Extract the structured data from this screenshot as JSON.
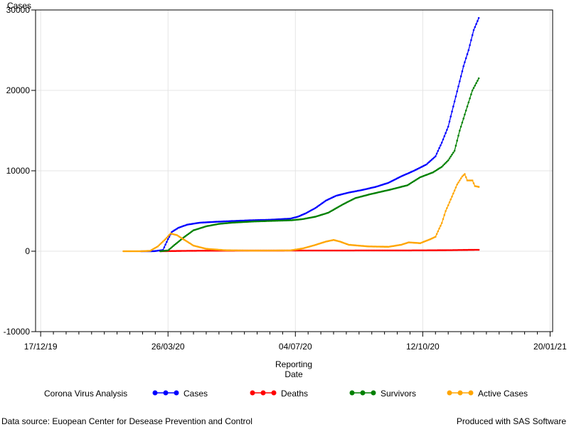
{
  "chart_data": {
    "type": "line",
    "ylabel": "Cases",
    "xlabel_lines": [
      "Reporting",
      "Date"
    ],
    "ylim": [
      -10000,
      30000
    ],
    "y_ticks": [
      -10000,
      0,
      10000,
      20000,
      30000
    ],
    "x_ticks": [
      "17/12/19",
      "26/03/20",
      "04/07/20",
      "12/10/20",
      "20/01/21"
    ],
    "x_tick_dates": [
      "2019-12-17",
      "2020-03-26",
      "2020-07-04",
      "2020-10-12",
      "2021-01-20"
    ],
    "xlim": [
      "2019-12-13",
      "2021-01-22"
    ],
    "grid": true,
    "legend_title": "Corona Virus Analysis",
    "legend_placement": "bottom",
    "series": [
      {
        "name": "Cases",
        "color": "#0000ff",
        "points": [
          [
            "2020-03-05",
            0
          ],
          [
            "2020-03-15",
            5
          ],
          [
            "2020-03-22",
            150
          ],
          [
            "2020-03-26",
            1500
          ],
          [
            "2020-03-29",
            2400
          ],
          [
            "2020-04-03",
            2900
          ],
          [
            "2020-04-10",
            3300
          ],
          [
            "2020-04-20",
            3550
          ],
          [
            "2020-05-01",
            3650
          ],
          [
            "2020-05-15",
            3750
          ],
          [
            "2020-05-31",
            3850
          ],
          [
            "2020-06-15",
            3920
          ],
          [
            "2020-06-30",
            4050
          ],
          [
            "2020-07-06",
            4300
          ],
          [
            "2020-07-12",
            4700
          ],
          [
            "2020-07-20",
            5400
          ],
          [
            "2020-07-28",
            6300
          ],
          [
            "2020-08-05",
            6900
          ],
          [
            "2020-08-15",
            7300
          ],
          [
            "2020-08-25",
            7600
          ],
          [
            "2020-09-05",
            8000
          ],
          [
            "2020-09-15",
            8500
          ],
          [
            "2020-09-25",
            9300
          ],
          [
            "2020-10-05",
            10000
          ],
          [
            "2020-10-15",
            10800
          ],
          [
            "2020-10-22",
            11800
          ],
          [
            "2020-10-27",
            13500
          ],
          [
            "2020-11-01",
            15500
          ],
          [
            "2020-11-05",
            18000
          ],
          [
            "2020-11-09",
            20500
          ],
          [
            "2020-11-13",
            23000
          ],
          [
            "2020-11-17",
            25000
          ],
          [
            "2020-11-21",
            27500
          ],
          [
            "2020-11-25",
            29000
          ]
        ]
      },
      {
        "name": "Deaths",
        "color": "#ff0000",
        "points": [
          [
            "2020-03-20",
            0
          ],
          [
            "2020-03-28",
            20
          ],
          [
            "2020-04-10",
            50
          ],
          [
            "2020-05-01",
            70
          ],
          [
            "2020-06-01",
            80
          ],
          [
            "2020-07-01",
            85
          ],
          [
            "2020-08-01",
            90
          ],
          [
            "2020-09-01",
            95
          ],
          [
            "2020-10-01",
            100
          ],
          [
            "2020-10-15",
            110
          ],
          [
            "2020-11-01",
            130
          ],
          [
            "2020-11-10",
            150
          ],
          [
            "2020-11-25",
            180
          ]
        ]
      },
      {
        "name": "Survivors",
        "color": "#008000",
        "points": [
          [
            "2020-03-20",
            0
          ],
          [
            "2020-03-26",
            100
          ],
          [
            "2020-04-01",
            900
          ],
          [
            "2020-04-08",
            1800
          ],
          [
            "2020-04-15",
            2600
          ],
          [
            "2020-04-25",
            3100
          ],
          [
            "2020-05-05",
            3400
          ],
          [
            "2020-05-15",
            3550
          ],
          [
            "2020-06-01",
            3700
          ],
          [
            "2020-06-20",
            3800
          ],
          [
            "2020-07-01",
            3850
          ],
          [
            "2020-07-10",
            4000
          ],
          [
            "2020-07-20",
            4300
          ],
          [
            "2020-07-30",
            4800
          ],
          [
            "2020-08-10",
            5800
          ],
          [
            "2020-08-20",
            6600
          ],
          [
            "2020-09-01",
            7100
          ],
          [
            "2020-09-15",
            7600
          ],
          [
            "2020-09-30",
            8200
          ],
          [
            "2020-10-10",
            9200
          ],
          [
            "2020-10-20",
            9800
          ],
          [
            "2020-10-27",
            10500
          ],
          [
            "2020-11-01",
            11300
          ],
          [
            "2020-11-06",
            12500
          ],
          [
            "2020-11-10",
            15000
          ],
          [
            "2020-11-15",
            17500
          ],
          [
            "2020-11-20",
            20000
          ],
          [
            "2020-11-25",
            21500
          ]
        ]
      },
      {
        "name": "Active Cases",
        "color": "#ffa500",
        "points": [
          [
            "2020-02-20",
            0
          ],
          [
            "2020-03-05",
            0
          ],
          [
            "2020-03-12",
            50
          ],
          [
            "2020-03-18",
            600
          ],
          [
            "2020-03-24",
            1500
          ],
          [
            "2020-03-28",
            2200
          ],
          [
            "2020-04-02",
            2000
          ],
          [
            "2020-04-08",
            1400
          ],
          [
            "2020-04-15",
            700
          ],
          [
            "2020-04-25",
            300
          ],
          [
            "2020-05-10",
            120
          ],
          [
            "2020-05-31",
            80
          ],
          [
            "2020-06-30",
            100
          ],
          [
            "2020-07-10",
            350
          ],
          [
            "2020-07-20",
            800
          ],
          [
            "2020-07-28",
            1200
          ],
          [
            "2020-08-03",
            1400
          ],
          [
            "2020-08-08",
            1200
          ],
          [
            "2020-08-15",
            800
          ],
          [
            "2020-08-30",
            600
          ],
          [
            "2020-09-15",
            550
          ],
          [
            "2020-09-25",
            800
          ],
          [
            "2020-10-01",
            1100
          ],
          [
            "2020-10-10",
            1000
          ],
          [
            "2020-10-18",
            1500
          ],
          [
            "2020-10-22",
            1800
          ],
          [
            "2020-10-27",
            3500
          ],
          [
            "2020-10-30",
            5000
          ],
          [
            "2020-11-04",
            6800
          ],
          [
            "2020-11-08",
            8300
          ],
          [
            "2020-11-12",
            9300
          ],
          [
            "2020-11-14",
            9600
          ],
          [
            "2020-11-16",
            8800
          ],
          [
            "2020-11-20",
            8800
          ],
          [
            "2020-11-22",
            8100
          ],
          [
            "2020-11-25",
            8000
          ]
        ]
      }
    ]
  },
  "footer": {
    "left": "Data source: Euopean Center for Desease Prevention and Control",
    "right": "Produced with SAS Software"
  }
}
